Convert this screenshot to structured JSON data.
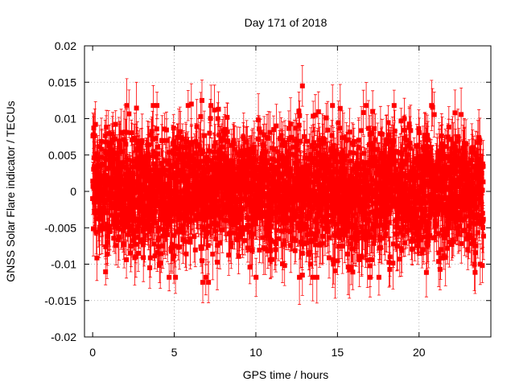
{
  "chart_data": {
    "type": "scatter",
    "title": "Day 171 of 2018",
    "xlabel": "GPS time / hours",
    "ylabel": "GNSS Solar Flare indicator / TECUs",
    "xlim": [
      -0.5,
      24.4
    ],
    "ylim": [
      -0.02,
      0.02
    ],
    "x_ticks": [
      0,
      5,
      10,
      15,
      20
    ],
    "y_ticks": [
      -0.02,
      -0.015,
      -0.01,
      -0.005,
      0,
      0.005,
      0.01,
      0.015,
      0.02
    ],
    "x_tick_labels": [
      "0",
      "5",
      "10",
      "15",
      "20"
    ],
    "y_tick_labels": [
      "-0.02",
      "-0.015",
      "-0.01",
      "-0.005",
      "0",
      "0.005",
      "0.01",
      "0.015",
      "0.02"
    ],
    "grid": true,
    "series": [
      {
        "name": "solar flare indicator",
        "color": "#ff0000",
        "marker": "square",
        "error_bars": true,
        "x_start": 0.0,
        "x_end": 23.95,
        "n_points": 2874,
        "mean": 0.0,
        "std_dev": 0.0042,
        "typical_error": 0.0028,
        "notable_points": [
          {
            "x": 12.85,
            "y": 0.0145
          },
          {
            "x": 6.05,
            "y": 0.012
          },
          {
            "x": 6.7,
            "y": 0.0125
          },
          {
            "x": 7.25,
            "y": 0.0118
          },
          {
            "x": 12.85,
            "y": -0.0115
          },
          {
            "x": 6.75,
            "y": -0.0125
          },
          {
            "x": 7.1,
            "y": -0.0125
          },
          {
            "x": 3.5,
            "y": -0.0105
          },
          {
            "x": 13.35,
            "y": -0.01
          },
          {
            "x": 19.1,
            "y": 0.01
          },
          {
            "x": 23.75,
            "y": -0.01
          }
        ]
      }
    ]
  }
}
